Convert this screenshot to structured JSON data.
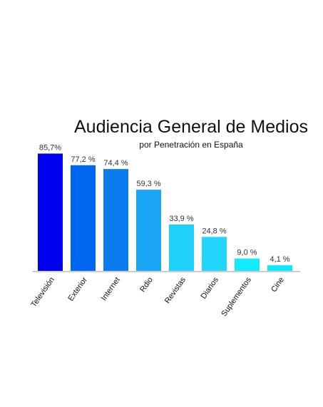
{
  "chart_data": {
    "type": "bar",
    "title": "Audiencia General de Medios",
    "subtitle": "por Penetración en España",
    "categories": [
      "Televisión",
      "Exterior",
      "Internet",
      "Rdio",
      "Revistas",
      "Diarios",
      "Suplementos",
      "Cine"
    ],
    "values": [
      85.7,
      77.2,
      74.4,
      59.3,
      33.9,
      24.8,
      9.0,
      4.1
    ],
    "value_labels": [
      "85,7%",
      "77,2 %",
      "74,4 %",
      "59,3 %",
      "33,9 %",
      "24,8 %",
      "9,0 %",
      "4,1 %"
    ],
    "colors": [
      "#0000ee",
      "#0066f0",
      "#0a7cf0",
      "#1aa6f4",
      "#1fd0fa",
      "#22d6fb",
      "#14eafd",
      "#10e6fd"
    ],
    "ylim": [
      0,
      100
    ],
    "grid": false,
    "legend": "none"
  }
}
